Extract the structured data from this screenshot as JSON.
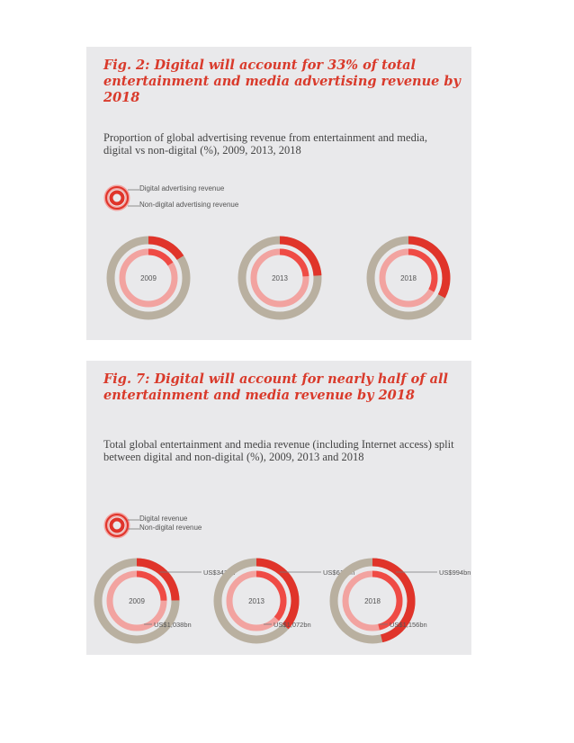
{
  "colors": {
    "digital": "#e0342a",
    "digital_inner": "#ef4b45",
    "nondigital_outer": "#b9b0a0",
    "nondigital_inner": "#f2a3a0",
    "title": "#d93a2b"
  },
  "fig2": {
    "title": "Fig. 2: Digital will account for 33% of total entertainment and media advertising revenue by 2018",
    "subtitle": "Proportion of global advertising revenue from entertainment and media, digital vs non-digital (%), 2009, 2013, 2018",
    "legend": {
      "digital": "Digital advertising revenue",
      "nondigital": "Non-digital advertising revenue"
    }
  },
  "fig7": {
    "title": "Fig. 7: Digital will account for nearly half of all entertainment and media revenue by 2018",
    "subtitle": "Total global entertainment and media revenue (including Internet access) split between digital and non-digital (%), 2009, 2013 and 2018",
    "legend": {
      "digital": "Digital revenue",
      "nondigital": "Non-digital revenue"
    }
  },
  "chart_data": [
    {
      "type": "pie",
      "title": "Fig. 2: Digital will account for 33% of total entertainment and media advertising revenue by 2018",
      "categories": [
        "2009",
        "2013",
        "2018"
      ],
      "series": [
        {
          "name": "Digital advertising revenue",
          "values": [
            16,
            24,
            33
          ]
        },
        {
          "name": "Non-digital advertising revenue",
          "values": [
            84,
            76,
            67
          ]
        }
      ],
      "value_labels": {
        "digital": [
          "",
          "",
          ""
        ],
        "nondigital": [
          "",
          "",
          ""
        ]
      }
    },
    {
      "type": "pie",
      "title": "Fig. 7: Digital will account for nearly half of all entertainment and media revenue by 2018",
      "categories": [
        "2009",
        "2013",
        "2018"
      ],
      "series": [
        {
          "name": "Digital revenue",
          "values": [
            24.8,
            36.5,
            46.2
          ]
        },
        {
          "name": "Non-digital revenue",
          "values": [
            75.2,
            63.5,
            53.8
          ]
        }
      ],
      "value_labels": {
        "digital": [
          "US$342bn",
          "US$616bn",
          "US$994bn"
        ],
        "nondigital": [
          "US$1,038bn",
          "US$1,072bn",
          "US$1,156bn"
        ]
      }
    }
  ]
}
